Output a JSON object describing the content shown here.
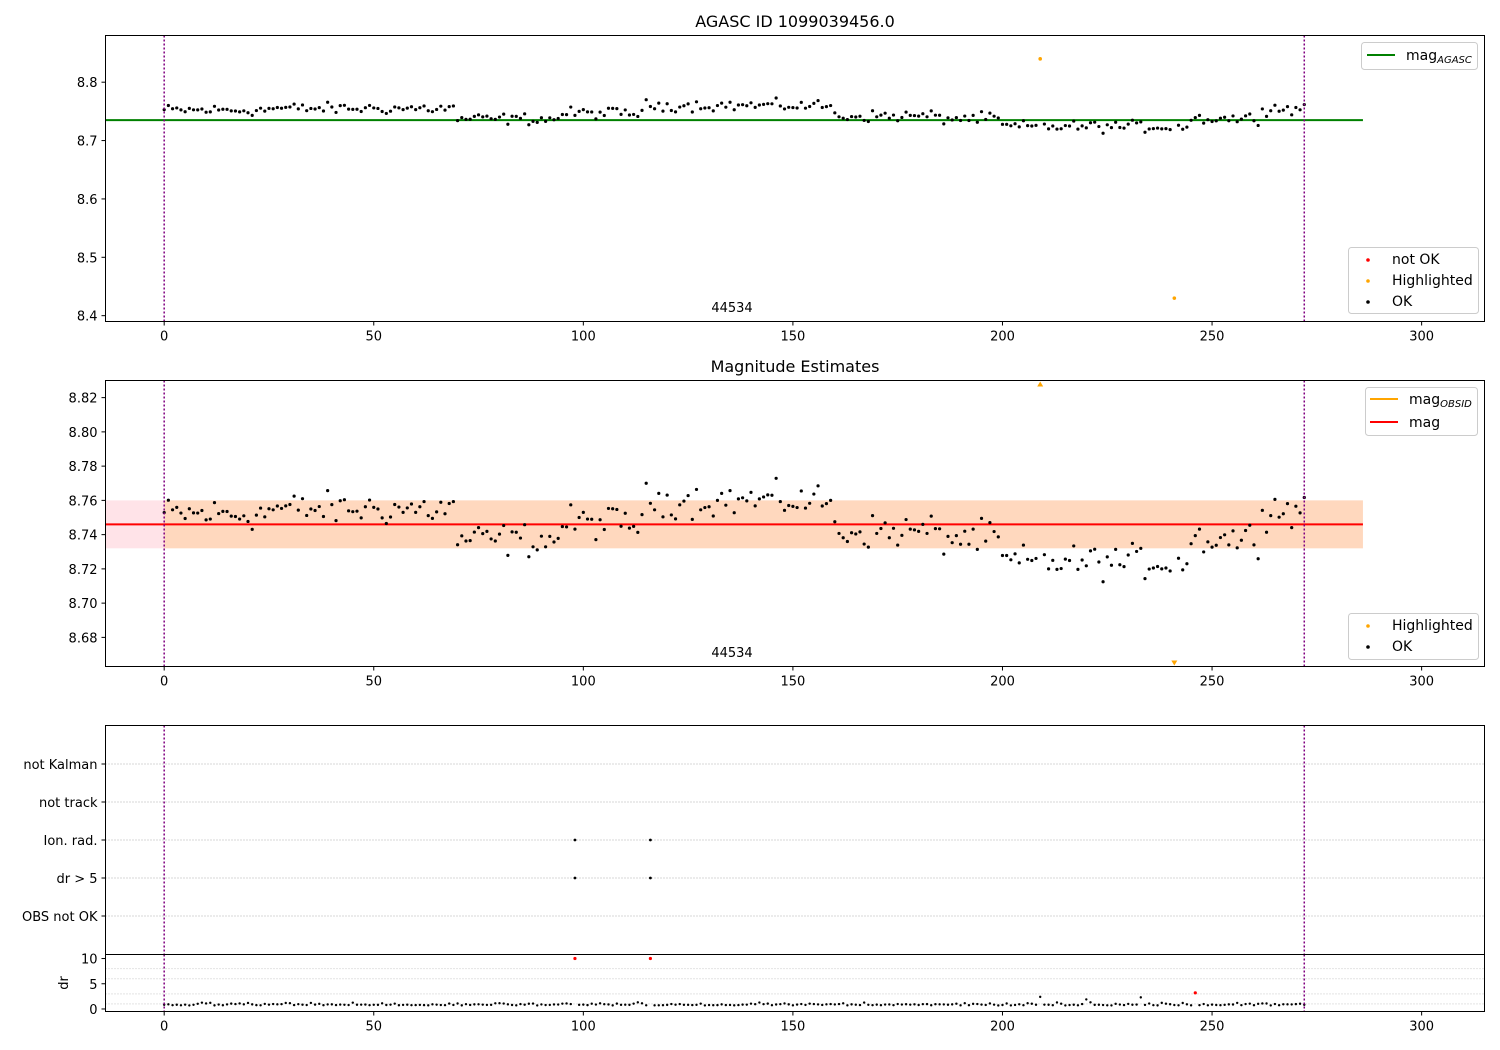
{
  "chart_data": [
    {
      "type": "scatter",
      "title": "AGASC ID 1099039456.0",
      "annotation": "44534",
      "xlim": [
        -14,
        315
      ],
      "ylim": [
        8.39,
        8.88
      ],
      "xticks": [
        0,
        50,
        100,
        150,
        200,
        250,
        300
      ],
      "yticks": [
        8.4,
        8.5,
        8.6,
        8.7,
        8.8
      ],
      "ytick_labels": [
        "8.4",
        "8.5",
        "8.6",
        "8.7",
        "8.8"
      ],
      "vlines": [
        0,
        272
      ],
      "hline": {
        "y": 8.735,
        "x_range": [
          -14,
          286
        ],
        "color": "#008000",
        "label": "mag",
        "label_sub": "AGASC"
      },
      "legend_lines_position": "top-right",
      "legend_points_position": "bottom-right",
      "legend_points": [
        {
          "label": "not OK",
          "color": "#ff0000"
        },
        {
          "label": "Highlighted",
          "color": "#ffa500"
        },
        {
          "label": "OK",
          "color": "#000000"
        }
      ],
      "highlighted": [
        [
          209,
          8.84
        ],
        [
          241,
          8.43
        ]
      ]
    },
    {
      "type": "scatter",
      "title": "Magnitude Estimates",
      "annotation": "44534",
      "xlim": [
        -14,
        315
      ],
      "ylim": [
        8.663,
        8.83
      ],
      "xticks": [
        0,
        50,
        100,
        150,
        200,
        250,
        300
      ],
      "yticks": [
        8.68,
        8.7,
        8.72,
        8.74,
        8.76,
        8.78,
        8.8,
        8.82
      ],
      "ytick_labels": [
        "8.68",
        "8.70",
        "8.72",
        "8.74",
        "8.76",
        "8.78",
        "8.80",
        "8.82"
      ],
      "vlines": [
        0,
        272
      ],
      "band": {
        "y_range": [
          8.732,
          8.76
        ],
        "x_range": [
          -14,
          286
        ]
      },
      "hline": {
        "y": 8.746,
        "x_range": [
          -14,
          286
        ],
        "color": "#ff0000",
        "label": "mag"
      },
      "obsid_line": {
        "color": "#ffa500",
        "label": "mag",
        "label_sub": "OBSID"
      },
      "legend_lines_position": "top-right",
      "legend_points_position": "bottom-right",
      "legend_points": [
        {
          "label": "Highlighted",
          "color": "#ffa500"
        },
        {
          "label": "OK",
          "color": "#000000"
        }
      ],
      "highlighted_out_of_range": [
        {
          "x": 209,
          "direction": "up"
        },
        {
          "x": 241,
          "direction": "down"
        }
      ]
    },
    {
      "type": "scatter",
      "xlim": [
        -14,
        315
      ],
      "vlines": [
        0,
        272
      ],
      "categories": [
        "not Kalman",
        "not track",
        "Ion. rad.",
        "dr > 5",
        "OBS not OK"
      ],
      "flags": [
        {
          "category": "Ion. rad.",
          "x": [
            98,
            116
          ]
        },
        {
          "category": "dr > 5",
          "x": [
            98,
            116
          ]
        }
      ]
    },
    {
      "type": "scatter",
      "ylabel": "dr",
      "xlim": [
        -14,
        315
      ],
      "ylim": [
        -0.5,
        10.8
      ],
      "xticks": [
        0,
        50,
        100,
        150,
        200,
        250,
        300
      ],
      "yticks": [
        0,
        5,
        10
      ],
      "ytick_labels": [
        "0",
        "5",
        "10"
      ],
      "vlines": [
        0,
        272
      ],
      "outliers_red": [
        [
          98,
          10
        ],
        [
          116,
          10
        ],
        [
          246,
          3.2
        ]
      ]
    }
  ]
}
